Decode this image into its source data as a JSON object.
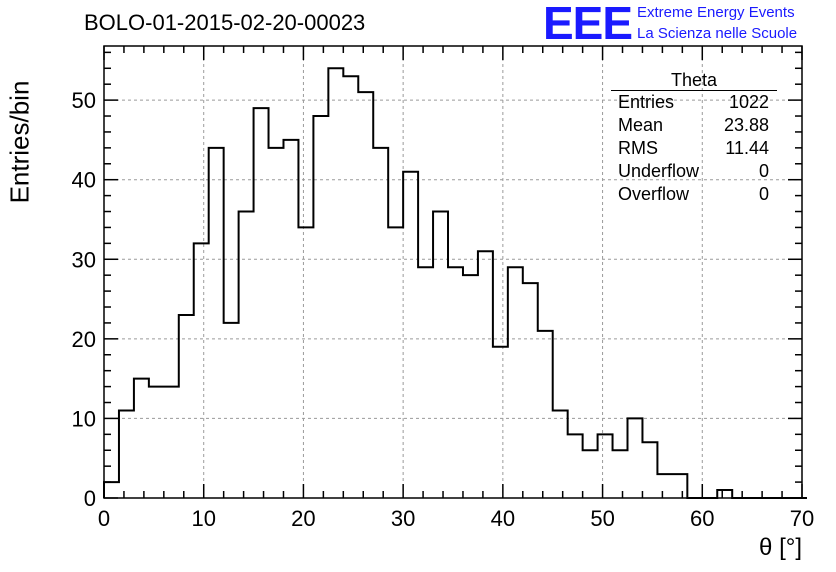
{
  "header": {
    "run_title": "BOLO-01-2015-02-20-00023",
    "logo_mark": "EEE",
    "logo_line1": "Extreme Energy Events",
    "logo_line2": "La Scienza nelle Scuole"
  },
  "stats_box": {
    "title": "Theta",
    "rows": [
      {
        "label": "Entries",
        "value": "1022"
      },
      {
        "label": "Mean",
        "value": "23.88"
      },
      {
        "label": "RMS",
        "value": "11.44"
      },
      {
        "label": "Underflow",
        "value": "0"
      },
      {
        "label": "Overflow",
        "value": "0"
      }
    ]
  },
  "colors": {
    "logo": "#1a1aff",
    "line": "#000000",
    "grid": "#9a9a9a"
  },
  "chart_data": {
    "type": "bar",
    "style": "step-histogram",
    "xlabel": "θ [°]",
    "ylabel": "Entries/bin",
    "xlim": [
      0,
      70
    ],
    "ylim": [
      0,
      56.8
    ],
    "grid": true,
    "bin_width": 1.5,
    "x_ticks": [
      0,
      10,
      20,
      30,
      40,
      50,
      60,
      70
    ],
    "y_ticks": [
      0,
      10,
      20,
      30,
      40,
      50
    ],
    "bin_edges_start": 0,
    "values": [
      2,
      11,
      15,
      14,
      14,
      23,
      32,
      44,
      22,
      36,
      49,
      44,
      45,
      34,
      48,
      54,
      53,
      51,
      44,
      34,
      41,
      29,
      36,
      29,
      28,
      31,
      19,
      29,
      27,
      21,
      11,
      8,
      6,
      8,
      6,
      10,
      7,
      3,
      3,
      0,
      0,
      1,
      0,
      0,
      0,
      0,
      0
    ]
  }
}
